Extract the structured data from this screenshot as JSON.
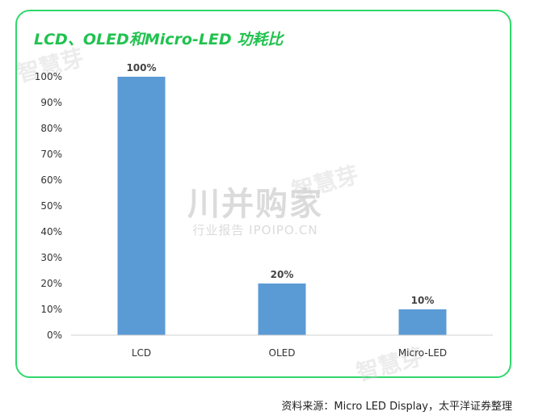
{
  "title": "LCD、OLED和Micro-LED 功耗比",
  "source": "资料来源：Micro LED Display，太平洋证券整理",
  "watermarks": {
    "repeat": "智慧芽",
    "center_main": "川并购家",
    "center_sub": "行业报告 IPOIPO.CN"
  },
  "colors": {
    "bar": "#5b9bd5",
    "frame": "#2fd86a",
    "title": "#21c24f"
  },
  "chart_data": {
    "type": "bar",
    "title": "LCD、OLED和Micro-LED 功耗比",
    "categories": [
      "LCD",
      "OLED",
      "Micro-LED"
    ],
    "values": [
      100,
      20,
      10
    ],
    "data_labels": [
      "100%",
      "20%",
      "10%"
    ],
    "yticks": [
      "0%",
      "10%",
      "20%",
      "30%",
      "40%",
      "50%",
      "60%",
      "70%",
      "80%",
      "90%",
      "100%"
    ],
    "ylim": [
      0,
      100
    ],
    "xlabel": "",
    "ylabel": "",
    "grid": false,
    "legend": "none"
  }
}
